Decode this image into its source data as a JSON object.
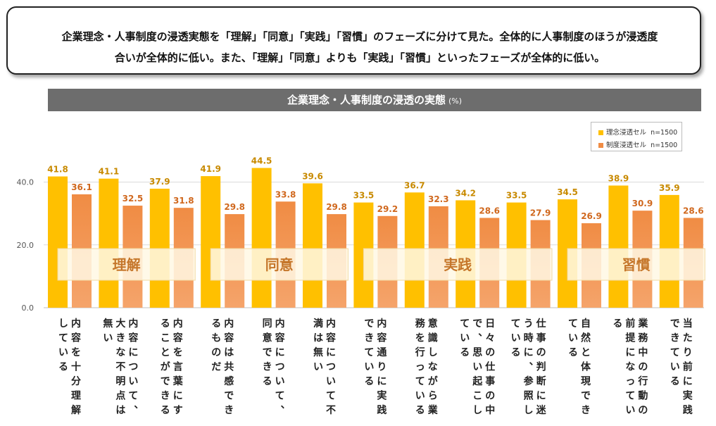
{
  "summary": {
    "line1": "企業理念・人事制度の浸透実態を「理解」「同意」「実践」「習慣」のフェーズに分けて見た。全体的に人事制度のほうが浸透度",
    "line2": "合いが全体的に低い。また、「理解」「同意」よりも「実践」「習慣」といったフェーズが全体的に低い。"
  },
  "chart_data": {
    "type": "bar",
    "title": "企業理念・人事制度の浸透の実態",
    "unit": "(%)",
    "ylim": [
      0,
      50
    ],
    "yticks": [
      "0.0",
      "20.0",
      "40.0"
    ],
    "categories": [
      "内容を十分理解している",
      "内容について、大きな不明点は無い",
      "内容を言葉にすることができる",
      "内容は共感できるものだ",
      "内容について、同意できる",
      "内容について不満は無い",
      "内容通りに実践できている",
      "意識しながら業務を行っている",
      "日々の仕事の中で、思い起こしている",
      "仕事の判断に迷う時に、参照している",
      "自然と体現できている",
      "業務中の行動の前提になっている",
      "当たり前に実践できている"
    ],
    "series": [
      {
        "name": "理念浸透セル",
        "n": "n=1500",
        "color": "#FFC000",
        "values": [
          41.8,
          41.1,
          37.9,
          41.9,
          44.5,
          39.6,
          33.5,
          36.7,
          34.2,
          33.5,
          34.5,
          38.9,
          35.9
        ]
      },
      {
        "name": "制度浸透セル",
        "n": "n=1500",
        "color": "#F08C44",
        "values": [
          36.1,
          32.5,
          31.8,
          29.8,
          33.8,
          29.8,
          29.2,
          32.3,
          28.6,
          27.9,
          26.9,
          30.9,
          28.6
        ]
      }
    ],
    "phases": [
      {
        "label": "理解",
        "start": 0,
        "end": 2
      },
      {
        "label": "同意",
        "start": 3,
        "end": 5
      },
      {
        "label": "実践",
        "start": 6,
        "end": 9
      },
      {
        "label": "習慣",
        "start": 10,
        "end": 12
      }
    ]
  }
}
